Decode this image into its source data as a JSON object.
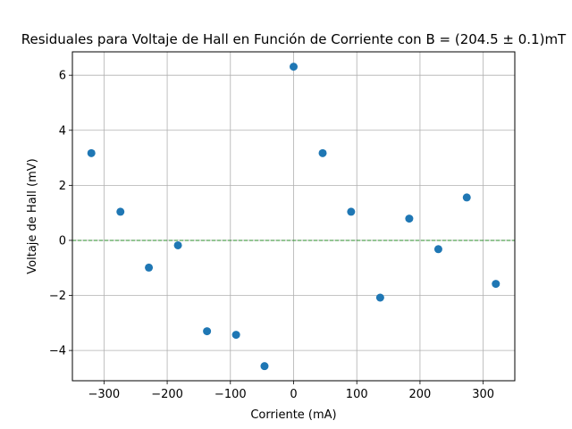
{
  "chart_data": {
    "type": "scatter",
    "title": "Residuales para Voltaje de Hall en Función de Corriente con B = (204.5 ± 0.1)mT",
    "xlabel": "Corriente (mA)",
    "ylabel": "Voltaje de Hall (mV)",
    "xlim": [
      -350,
      350
    ],
    "ylim": [
      -5.1,
      6.85
    ],
    "xticks": [
      -300,
      -200,
      -100,
      0,
      100,
      200,
      300
    ],
    "xtick_labels": [
      "−300",
      "−200",
      "−100",
      "0",
      "100",
      "200",
      "300"
    ],
    "yticks": [
      -4,
      -2,
      0,
      2,
      4,
      6
    ],
    "ytick_labels": [
      "−4",
      "−2",
      "0",
      "2",
      "4",
      "6"
    ],
    "grid": true,
    "reference_line": {
      "y": 0,
      "color": "#2ca02c",
      "style": "dashed"
    },
    "series": [
      {
        "color": "#1f77b4",
        "x": [
          -320,
          -274,
          -229,
          -183,
          -137,
          -91,
          -46,
          0,
          46,
          91,
          137,
          183,
          229,
          274,
          320
        ],
        "y": [
          3.17,
          1.04,
          -0.99,
          -0.18,
          -3.3,
          -3.43,
          -4.57,
          6.31,
          3.17,
          1.04,
          -2.08,
          0.79,
          -0.32,
          1.56,
          -1.58
        ]
      }
    ]
  }
}
